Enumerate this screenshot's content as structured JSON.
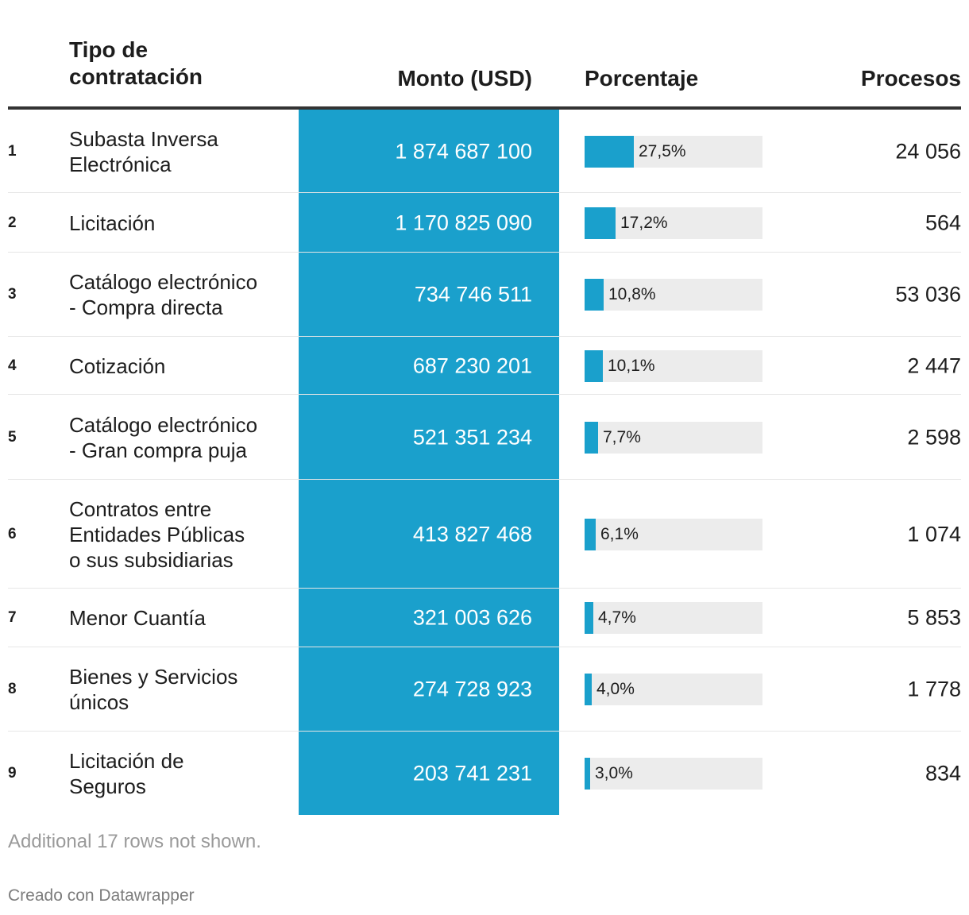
{
  "colors": {
    "accent": "#1aa0cc",
    "track": "#ececec",
    "rule": "#333333",
    "text": "#1d1d1d",
    "muted": "#9a9a9a"
  },
  "chart_data": {
    "type": "table",
    "columns": [
      "Tipo de contratación",
      "Monto (USD)",
      "Porcentaje",
      "Procesos"
    ],
    "pct_max": 100,
    "rows": [
      {
        "rank": "1",
        "tipo": "Subasta Inversa\nElectrónica",
        "monto": "1 874 687 100",
        "pct": 27.5,
        "pct_label": "27,5%",
        "procesos": "24 056"
      },
      {
        "rank": "2",
        "tipo": "Licitación",
        "monto": "1 170 825 090",
        "pct": 17.2,
        "pct_label": "17,2%",
        "procesos": "564"
      },
      {
        "rank": "3",
        "tipo": "Catálogo electrónico\n- Compra directa",
        "monto": "734 746 511",
        "pct": 10.8,
        "pct_label": "10,8%",
        "procesos": "53 036"
      },
      {
        "rank": "4",
        "tipo": "Cotización",
        "monto": "687 230 201",
        "pct": 10.1,
        "pct_label": "10,1%",
        "procesos": "2 447"
      },
      {
        "rank": "5",
        "tipo": "Catálogo electrónico\n- Gran compra puja",
        "monto": "521 351 234",
        "pct": 7.7,
        "pct_label": "7,7%",
        "procesos": "2 598"
      },
      {
        "rank": "6",
        "tipo": "Contratos entre\nEntidades Públicas\no sus subsidiarias",
        "monto": "413 827 468",
        "pct": 6.1,
        "pct_label": "6,1%",
        "procesos": "1 074"
      },
      {
        "rank": "7",
        "tipo": "Menor Cuantía",
        "monto": "321 003 626",
        "pct": 4.7,
        "pct_label": "4,7%",
        "procesos": "5 853"
      },
      {
        "rank": "8",
        "tipo": "Bienes y Servicios\núnicos",
        "monto": "274 728 923",
        "pct": 4.0,
        "pct_label": "4,0%",
        "procesos": "1 778"
      },
      {
        "rank": "9",
        "tipo": "Licitación de\nSeguros",
        "monto": "203 741 231",
        "pct": 3.0,
        "pct_label": "3,0%",
        "procesos": "834"
      }
    ]
  },
  "header": {
    "tipo": "Tipo de contratación",
    "monto": "Monto (USD)",
    "porcentaje": "Porcentaje",
    "procesos": "Procesos"
  },
  "footer": {
    "notes": "Additional 17 rows not shown.",
    "credit": "Creado con Datawrapper"
  }
}
